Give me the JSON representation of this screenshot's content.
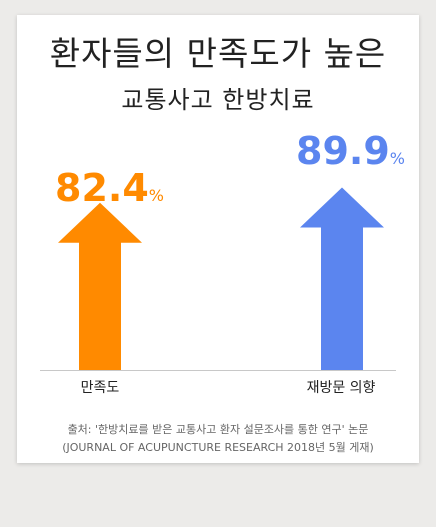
{
  "title": "환자들의 만족도가 높은",
  "subtitle": "교통사고 한방치료",
  "unit": "%",
  "source_line1": "출처: '한방치료를 받은 교통사고 환자 설문조사를 통한 연구' 논문",
  "source_line2": "(JOURNAL OF ACUPUNCTURE RESEARCH 2018년 5월 게재)",
  "colors": {
    "satisfaction": "#ff8a00",
    "revisit": "#5b85ef"
  },
  "chart_data": {
    "type": "bar",
    "categories": [
      "만족도",
      "재방문 의향"
    ],
    "values": [
      82.4,
      89.9
    ],
    "value_labels": [
      "82.4",
      "89.9"
    ],
    "title": "환자들의 만족도가 높은",
    "subtitle": "교통사고 한방치료",
    "xlabel": "",
    "ylabel": "",
    "grid": false,
    "legend": "none"
  }
}
